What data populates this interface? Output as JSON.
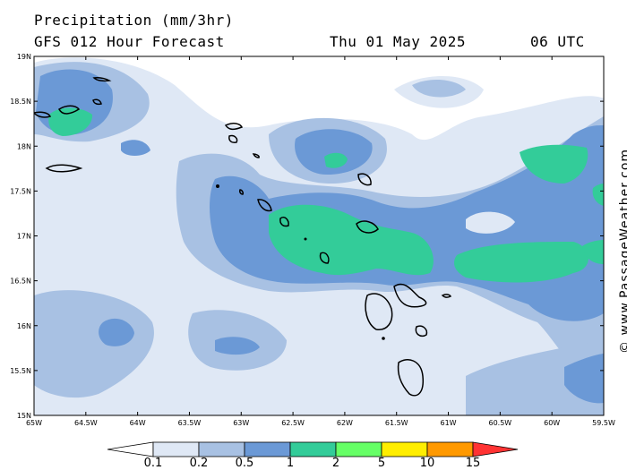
{
  "header": {
    "title_line1": "Precipitation (mm/3hr)",
    "title_line2": "GFS 012 Hour Forecast",
    "date": "Thu 01 May 2025",
    "time": "06 UTC"
  },
  "credit": "© www.PassageWeather.com",
  "map": {
    "lat_labels": [
      "19N",
      "18.5N",
      "18N",
      "17.5N",
      "17N",
      "16.5N",
      "16N",
      "15.5N",
      "15N"
    ],
    "lon_labels": [
      "65W",
      "64.5W",
      "64W",
      "63.5W",
      "63W",
      "62.5W",
      "62W",
      "61.5W",
      "61W",
      "60.5W",
      "60W",
      "59.5W"
    ]
  },
  "legend": {
    "colors": [
      "#ffffff",
      "#dfe8f5",
      "#a8c1e3",
      "#6b99d6",
      "#33cc99",
      "#66ff66",
      "#ffee00",
      "#ff9900",
      "#ff3333"
    ],
    "labels": [
      "0.1",
      "0.2",
      "0.5",
      "1",
      "2",
      "5",
      "10",
      "15"
    ]
  }
}
